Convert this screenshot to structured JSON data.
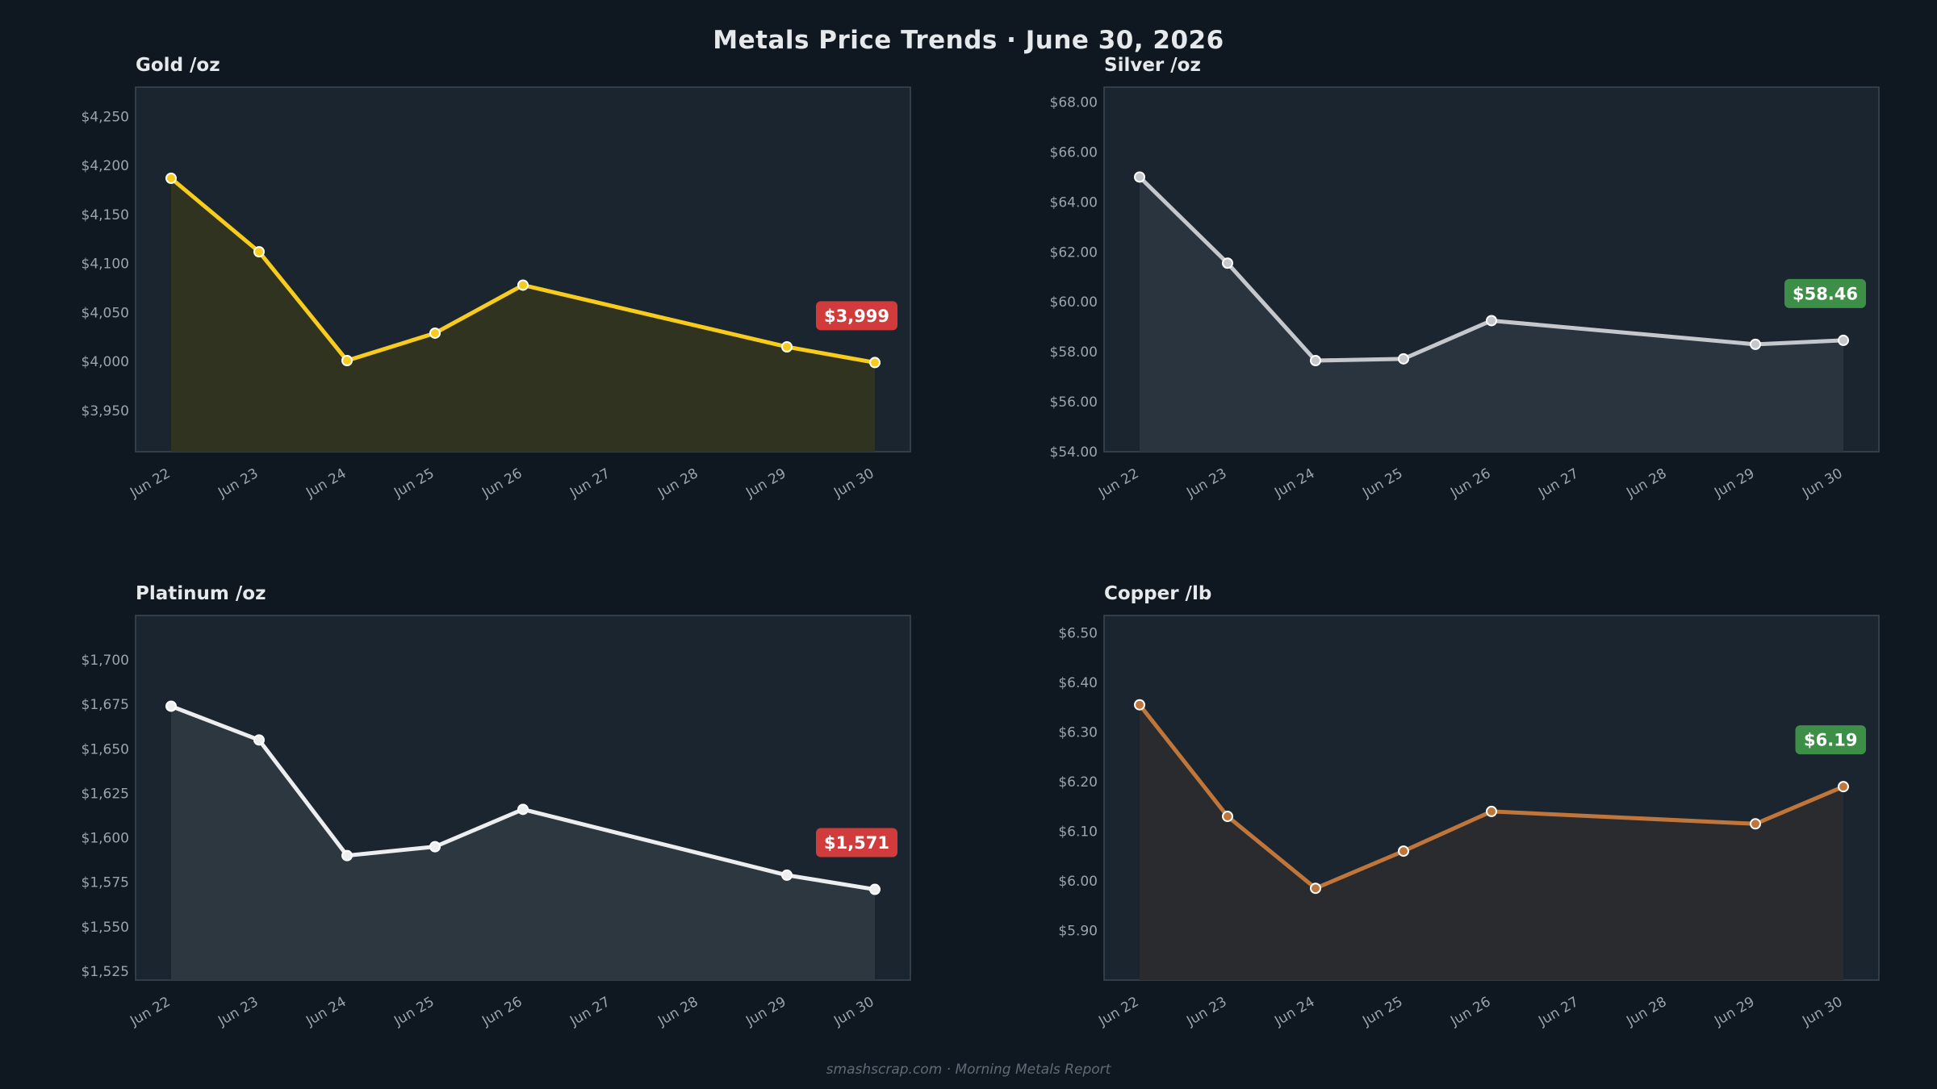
{
  "header": {
    "title": "Metals Price Trends  ·  June 30, 2026"
  },
  "footer": {
    "text": "smashscrap.com  ·  Morning Metals Report"
  },
  "colors": {
    "page_bg": "#0f1720",
    "panel_bg": "#1b2530",
    "panel_border": "#3b4854",
    "badge_down": "#d13b3b",
    "badge_up": "#3d8f47"
  },
  "chart_data": [
    {
      "type": "line",
      "id": "gold",
      "title": "Gold  /oz",
      "color": "#f7cc1c",
      "fill": "#32341f",
      "x": [
        "Jun 22",
        "Jun 23",
        "Jun 24",
        "Jun 25",
        "Jun 26",
        "Jun 27",
        "Jun 28",
        "Jun 29",
        "Jun 30"
      ],
      "points": [
        {
          "x": "Jun 22",
          "y": 4187
        },
        {
          "x": "Jun 23",
          "y": 4112
        },
        {
          "x": "Jun 24",
          "y": 4001
        },
        {
          "x": "Jun 25",
          "y": 4029
        },
        {
          "x": "Jun 26",
          "y": 4078
        },
        {
          "x": "Jun 29",
          "y": 4015
        },
        {
          "x": "Jun 30",
          "y": 3999
        }
      ],
      "ylim": [
        3908,
        4280
      ],
      "yticks": [
        3950,
        4000,
        4050,
        4100,
        4150,
        4200,
        4250
      ],
      "ytick_labels": [
        "$3,950",
        "$4,000",
        "$4,050",
        "$4,100",
        "$4,150",
        "$4,200",
        "$4,250"
      ],
      "last_label": "$3,999",
      "trend": "down"
    },
    {
      "type": "line",
      "id": "silver",
      "title": "Silver  /oz",
      "color": "#c4c8cc",
      "fill": "#2a3540",
      "x": [
        "Jun 22",
        "Jun 23",
        "Jun 24",
        "Jun 25",
        "Jun 26",
        "Jun 27",
        "Jun 28",
        "Jun 29",
        "Jun 30"
      ],
      "points": [
        {
          "x": "Jun 22",
          "y": 65.0
        },
        {
          "x": "Jun 23",
          "y": 61.55
        },
        {
          "x": "Jun 24",
          "y": 57.65
        },
        {
          "x": "Jun 25",
          "y": 57.72
        },
        {
          "x": "Jun 26",
          "y": 59.25
        },
        {
          "x": "Jun 29",
          "y": 58.3
        },
        {
          "x": "Jun 30",
          "y": 58.46
        }
      ],
      "ylim": [
        54.0,
        68.6
      ],
      "yticks": [
        54,
        56,
        58,
        60,
        62,
        64,
        66,
        68
      ],
      "ytick_labels": [
        "$54.00",
        "$56.00",
        "$58.00",
        "$60.00",
        "$62.00",
        "$64.00",
        "$66.00",
        "$68.00"
      ],
      "last_label": "$58.46",
      "trend": "up"
    },
    {
      "type": "line",
      "id": "platinum",
      "title": "Platinum  /oz",
      "color": "#eceef0",
      "fill": "#2e3841",
      "x": [
        "Jun 22",
        "Jun 23",
        "Jun 24",
        "Jun 25",
        "Jun 26",
        "Jun 27",
        "Jun 28",
        "Jun 29",
        "Jun 30"
      ],
      "points": [
        {
          "x": "Jun 22",
          "y": 1674
        },
        {
          "x": "Jun 23",
          "y": 1655
        },
        {
          "x": "Jun 24",
          "y": 1590
        },
        {
          "x": "Jun 25",
          "y": 1595
        },
        {
          "x": "Jun 26",
          "y": 1616
        },
        {
          "x": "Jun 29",
          "y": 1579
        },
        {
          "x": "Jun 30",
          "y": 1571
        }
      ],
      "ylim": [
        1520,
        1725
      ],
      "yticks": [
        1525,
        1550,
        1575,
        1600,
        1625,
        1650,
        1675,
        1700
      ],
      "ytick_labels": [
        "$1,525",
        "$1,550",
        "$1,575",
        "$1,600",
        "$1,625",
        "$1,650",
        "$1,675",
        "$1,700"
      ],
      "last_label": "$1,571",
      "trend": "down"
    },
    {
      "type": "line",
      "id": "copper",
      "title": "Copper  /lb",
      "color": "#c0763a",
      "fill": "#2a2b2e",
      "x": [
        "Jun 22",
        "Jun 23",
        "Jun 24",
        "Jun 25",
        "Jun 26",
        "Jun 27",
        "Jun 28",
        "Jun 29",
        "Jun 30"
      ],
      "points": [
        {
          "x": "Jun 22",
          "y": 6.355
        },
        {
          "x": "Jun 23",
          "y": 6.13
        },
        {
          "x": "Jun 24",
          "y": 5.985
        },
        {
          "x": "Jun 25",
          "y": 6.06
        },
        {
          "x": "Jun 26",
          "y": 6.14
        },
        {
          "x": "Jun 29",
          "y": 6.115
        },
        {
          "x": "Jun 30",
          "y": 6.19
        }
      ],
      "ylim": [
        5.8,
        6.535
      ],
      "yticks": [
        5.9,
        6.0,
        6.1,
        6.2,
        6.3,
        6.4,
        6.5
      ],
      "ytick_labels": [
        "$5.90",
        "$6.00",
        "$6.10",
        "$6.20",
        "$6.30",
        "$6.40",
        "$6.50"
      ],
      "last_label": "$6.19",
      "trend": "up"
    }
  ]
}
